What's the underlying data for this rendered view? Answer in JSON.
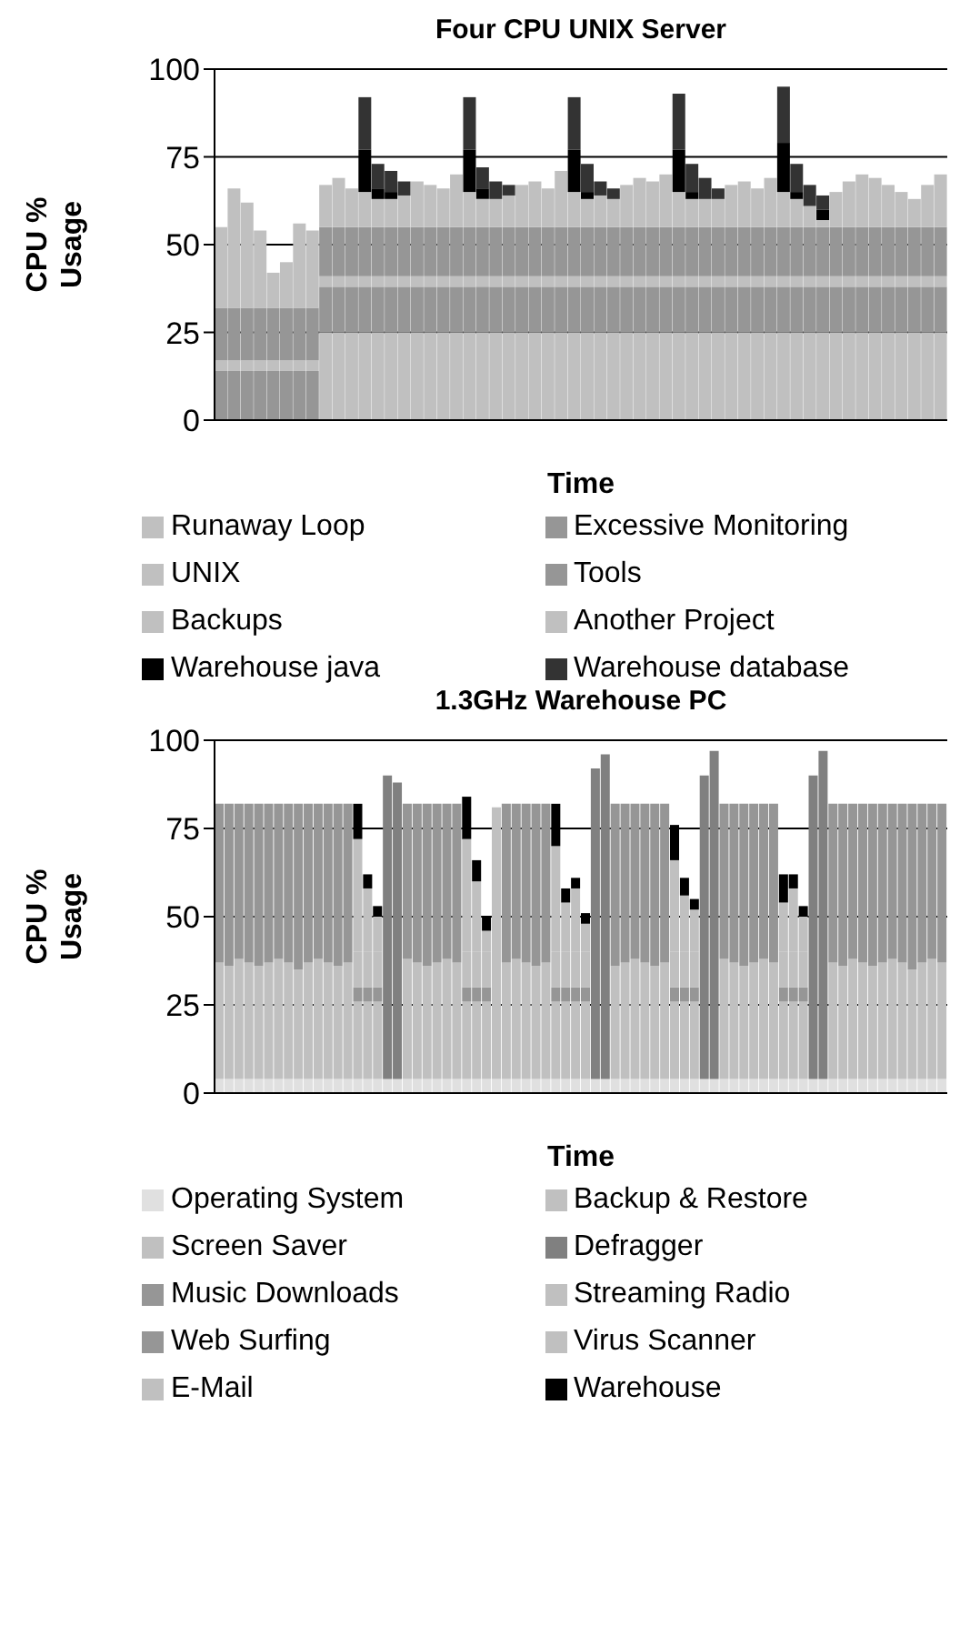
{
  "chart_data": [
    {
      "type": "bar",
      "stacked": true,
      "title": "Four CPU UNIX Server",
      "xlabel": "Time",
      "ylabel": "CPU % Usage",
      "ylim": [
        0,
        100
      ],
      "yticks": [
        0,
        25,
        50,
        75,
        100
      ],
      "grid": "y",
      "legend": "bottom",
      "tick_labels": "y",
      "categories": [
        null,
        null,
        null,
        null,
        null,
        null,
        null,
        null,
        null,
        null,
        null,
        null,
        null,
        null,
        null,
        null,
        null,
        null,
        null,
        null,
        null,
        null,
        null,
        null,
        null,
        null,
        null,
        null,
        null,
        null,
        null,
        null,
        null,
        null,
        null,
        null,
        null,
        null,
        null,
        null,
        null,
        null,
        null,
        null,
        null,
        null,
        null,
        null,
        null,
        null,
        null,
        null,
        null,
        null,
        null,
        null
      ],
      "series": [
        {
          "name": "Runaway Loop",
          "color": "#c0c0c0",
          "values": [
            0,
            0,
            0,
            0,
            0,
            0,
            0,
            0,
            25,
            25,
            25,
            25,
            25,
            25,
            25,
            25,
            25,
            25,
            25,
            25,
            25,
            25,
            25,
            25,
            25,
            25,
            25,
            25,
            25,
            25,
            25,
            25,
            25,
            25,
            25,
            25,
            25,
            25,
            25,
            25,
            25,
            25,
            25,
            25,
            25,
            25,
            25,
            25,
            25,
            25,
            25,
            25,
            25,
            25,
            25,
            25
          ]
        },
        {
          "name": "Excessive Monitoring",
          "color": "#969696",
          "values": [
            14,
            14,
            14,
            14,
            14,
            14,
            14,
            14,
            13,
            13,
            13,
            13,
            13,
            13,
            13,
            13,
            13,
            13,
            13,
            13,
            13,
            13,
            13,
            13,
            13,
            13,
            13,
            13,
            13,
            13,
            13,
            13,
            13,
            13,
            13,
            13,
            13,
            13,
            13,
            13,
            13,
            13,
            13,
            13,
            13,
            13,
            13,
            13,
            13,
            13,
            13,
            13,
            13,
            13,
            13,
            13
          ]
        },
        {
          "name": "UNIX",
          "color": "#c0c0c0",
          "values": [
            3,
            3,
            3,
            3,
            3,
            3,
            3,
            3,
            3,
            3,
            3,
            3,
            3,
            3,
            3,
            3,
            3,
            3,
            3,
            3,
            3,
            3,
            3,
            3,
            3,
            3,
            3,
            3,
            3,
            3,
            3,
            3,
            3,
            3,
            3,
            3,
            3,
            3,
            3,
            3,
            3,
            3,
            3,
            3,
            3,
            3,
            3,
            3,
            3,
            3,
            3,
            3,
            3,
            3,
            3,
            3
          ]
        },
        {
          "name": "Tools",
          "color": "#969696",
          "values": [
            15,
            15,
            15,
            15,
            15,
            15,
            15,
            15,
            14,
            14,
            14,
            14,
            14,
            14,
            14,
            14,
            14,
            14,
            14,
            14,
            14,
            14,
            14,
            14,
            14,
            14,
            14,
            14,
            14,
            14,
            14,
            14,
            14,
            14,
            14,
            14,
            14,
            14,
            14,
            14,
            14,
            14,
            14,
            14,
            14,
            14,
            14,
            14,
            14,
            14,
            14,
            14,
            14,
            14,
            14,
            14
          ]
        },
        {
          "name": "Backups",
          "color": "#c0c0c0",
          "values": [
            23,
            34,
            30,
            22,
            10,
            13,
            24,
            22,
            0,
            0,
            0,
            0,
            0,
            0,
            0,
            0,
            0,
            0,
            0,
            0,
            0,
            0,
            0,
            0,
            0,
            0,
            0,
            0,
            0,
            0,
            0,
            0,
            0,
            0,
            0,
            0,
            0,
            0,
            0,
            0,
            0,
            0,
            0,
            0,
            0,
            0,
            0,
            0,
            0,
            0,
            0,
            0,
            0,
            0,
            0,
            0
          ]
        },
        {
          "name": "Another Project",
          "color": "#c0c0c0",
          "values": [
            0,
            0,
            0,
            0,
            0,
            0,
            0,
            0,
            12,
            14,
            11,
            10,
            8,
            8,
            9,
            13,
            12,
            11,
            15,
            10,
            8,
            8,
            9,
            12,
            13,
            11,
            16,
            10,
            8,
            9,
            8,
            12,
            14,
            13,
            15,
            10,
            8,
            8,
            8,
            12,
            13,
            11,
            14,
            10,
            8,
            6,
            2,
            10,
            13,
            15,
            14,
            12,
            10,
            8,
            12,
            15
          ]
        },
        {
          "name": "Warehouse java",
          "color": "#000000",
          "values": [
            0,
            0,
            0,
            0,
            0,
            0,
            0,
            0,
            0,
            0,
            0,
            12,
            3,
            2,
            0,
            0,
            0,
            0,
            0,
            12,
            3,
            0,
            0,
            0,
            0,
            0,
            0,
            12,
            2,
            0,
            0,
            0,
            0,
            0,
            0,
            12,
            2,
            0,
            0,
            0,
            0,
            0,
            0,
            14,
            2,
            0,
            3,
            0,
            0,
            0,
            0,
            0,
            0,
            0,
            0,
            0
          ]
        },
        {
          "name": "Warehouse database",
          "color": "#333333",
          "values": [
            0,
            0,
            0,
            0,
            0,
            0,
            0,
            0,
            0,
            0,
            0,
            15,
            7,
            6,
            4,
            0,
            0,
            0,
            0,
            15,
            6,
            5,
            3,
            0,
            0,
            0,
            0,
            15,
            8,
            4,
            3,
            0,
            0,
            0,
            0,
            16,
            8,
            6,
            3,
            0,
            0,
            0,
            0,
            16,
            8,
            6,
            4,
            0,
            0,
            0,
            0,
            0,
            0,
            0,
            0,
            0
          ]
        }
      ]
    },
    {
      "type": "bar",
      "stacked": true,
      "title": "1.3GHz Warehouse PC",
      "xlabel": "Time",
      "ylabel": "CPU % Usage",
      "ylim": [
        0,
        100
      ],
      "yticks": [
        0,
        25,
        50,
        75,
        100
      ],
      "grid": "y",
      "legend": "bottom",
      "tick_labels": "y",
      "categories": [
        null,
        null,
        null,
        null,
        null,
        null,
        null,
        null,
        null,
        null,
        null,
        null,
        null,
        null,
        null,
        null,
        null,
        null,
        null,
        null,
        null,
        null,
        null,
        null,
        null,
        null,
        null,
        null,
        null,
        null,
        null,
        null,
        null,
        null,
        null,
        null,
        null,
        null,
        null,
        null,
        null,
        null,
        null,
        null,
        null,
        null,
        null,
        null,
        null,
        null,
        null,
        null,
        null,
        null,
        null,
        null,
        null,
        null,
        null,
        null,
        null,
        null,
        null,
        null,
        null,
        null,
        null,
        null,
        null,
        null,
        null,
        null,
        null,
        null
      ],
      "series": [
        {
          "name": "Operating System",
          "color": "#e0e0e0",
          "values": [
            4,
            4,
            4,
            4,
            4,
            4,
            4,
            4,
            4,
            4,
            4,
            4,
            4,
            4,
            4,
            4,
            4,
            4,
            4,
            4,
            4,
            4,
            4,
            4,
            4,
            4,
            4,
            4,
            4,
            4,
            4,
            4,
            4,
            4,
            4,
            4,
            4,
            4,
            4,
            4,
            4,
            4,
            4,
            4,
            4,
            4,
            4,
            4,
            4,
            4,
            4,
            4,
            4,
            4,
            4,
            4,
            4,
            4,
            4,
            4,
            4,
            4,
            4,
            4,
            4,
            4,
            4,
            4,
            4,
            4,
            4,
            4,
            4,
            4
          ]
        },
        {
          "name": "Backup & Restore",
          "color": "#c0c0c0",
          "values": [
            0,
            0,
            0,
            0,
            0,
            0,
            0,
            0,
            0,
            0,
            0,
            0,
            0,
            0,
            22,
            22,
            22,
            0,
            0,
            0,
            0,
            0,
            0,
            0,
            0,
            22,
            22,
            22,
            0,
            0,
            0,
            0,
            0,
            0,
            22,
            22,
            22,
            22,
            0,
            0,
            0,
            0,
            0,
            0,
            0,
            0,
            22,
            22,
            22,
            0,
            0,
            0,
            0,
            0,
            0,
            0,
            0,
            22,
            22,
            22,
            0,
            0,
            0,
            0,
            0,
            0,
            0,
            0,
            0,
            0,
            0,
            0,
            0,
            0
          ]
        },
        {
          "name": "Screen Saver",
          "color": "#c0c0c0",
          "values": [
            33,
            32,
            34,
            33,
            32,
            33,
            34,
            33,
            31,
            33,
            34,
            33,
            32,
            33,
            0,
            0,
            0,
            0,
            0,
            34,
            33,
            32,
            33,
            34,
            33,
            0,
            0,
            0,
            0,
            33,
            34,
            33,
            32,
            33,
            0,
            0,
            0,
            0,
            0,
            0,
            32,
            33,
            34,
            33,
            32,
            33,
            0,
            0,
            0,
            0,
            0,
            34,
            33,
            32,
            33,
            34,
            33,
            0,
            0,
            0,
            0,
            0,
            33,
            32,
            34,
            33,
            32,
            33,
            34,
            33,
            31,
            33,
            34,
            33
          ]
        },
        {
          "name": "Defragger",
          "color": "#808080",
          "values": [
            0,
            0,
            0,
            0,
            0,
            0,
            0,
            0,
            0,
            0,
            0,
            0,
            0,
            0,
            0,
            0,
            0,
            0,
            0,
            0,
            0,
            0,
            0,
            0,
            0,
            0,
            0,
            0,
            0,
            0,
            0,
            0,
            0,
            0,
            0,
            0,
            0,
            0,
            0,
            0,
            0,
            0,
            0,
            0,
            0,
            0,
            0,
            0,
            0,
            86,
            93,
            0,
            0,
            0,
            0,
            0,
            0,
            0,
            0,
            0,
            0,
            0,
            0,
            0,
            0,
            0,
            0,
            0,
            0,
            0,
            0,
            0,
            0,
            0
          ]
        },
        {
          "name": "Music Downloads",
          "color": "#969696",
          "values": [
            45,
            46,
            44,
            45,
            46,
            45,
            44,
            45,
            47,
            45,
            44,
            45,
            46,
            45,
            0,
            0,
            0,
            0,
            0,
            44,
            45,
            46,
            45,
            44,
            45,
            0,
            0,
            0,
            0,
            45,
            44,
            45,
            46,
            45,
            0,
            0,
            0,
            0,
            0,
            0,
            46,
            45,
            44,
            45,
            46,
            45,
            0,
            0,
            0,
            0,
            0,
            44,
            45,
            46,
            45,
            44,
            45,
            0,
            0,
            0,
            0,
            0,
            45,
            46,
            44,
            45,
            46,
            45,
            44,
            45,
            47,
            45,
            44,
            45
          ]
        },
        {
          "name": "Streaming Radio",
          "color": "#c0c0c0",
          "values": [
            0,
            0,
            0,
            0,
            0,
            0,
            0,
            0,
            0,
            0,
            0,
            0,
            0,
            0,
            0,
            0,
            0,
            0,
            0,
            0,
            0,
            0,
            0,
            0,
            0,
            0,
            0,
            0,
            77,
            0,
            0,
            0,
            0,
            0,
            0,
            0,
            0,
            0,
            0,
            0,
            0,
            0,
            0,
            0,
            0,
            0,
            0,
            0,
            0,
            0,
            0,
            0,
            0,
            0,
            0,
            0,
            0,
            0,
            0,
            0,
            0,
            0,
            0,
            0,
            0,
            0,
            0,
            0,
            0,
            0,
            0,
            0,
            0,
            0
          ]
        },
        {
          "color": "#808080",
          "values": [
            0,
            0,
            0,
            0,
            0,
            0,
            0,
            0,
            0,
            0,
            0,
            0,
            0,
            0,
            0,
            0,
            0,
            86,
            84,
            0,
            0,
            0,
            0,
            0,
            0,
            0,
            0,
            0,
            0,
            0,
            0,
            0,
            0,
            0,
            0,
            0,
            0,
            0,
            88,
            92,
            0,
            0,
            0,
            0,
            0,
            0,
            0,
            0,
            0,
            0,
            0,
            0,
            0,
            0,
            0,
            0,
            0,
            0,
            0,
            0,
            86,
            93,
            0,
            0,
            0,
            0,
            0,
            0,
            0,
            0,
            0,
            0,
            0,
            0
          ]
        },
        {
          "name": "Web Surfing",
          "color": "#969696",
          "values": [
            0,
            0,
            0,
            0,
            0,
            0,
            0,
            0,
            0,
            0,
            0,
            0,
            0,
            0,
            4,
            4,
            4,
            0,
            0,
            0,
            0,
            0,
            0,
            0,
            0,
            4,
            4,
            4,
            0,
            0,
            0,
            0,
            0,
            0,
            4,
            4,
            4,
            4,
            0,
            0,
            0,
            0,
            0,
            0,
            0,
            0,
            4,
            4,
            4,
            0,
            0,
            0,
            0,
            0,
            0,
            0,
            0,
            4,
            4,
            4,
            0,
            0,
            0,
            0,
            0,
            0,
            0,
            0,
            0,
            0,
            0,
            0,
            0,
            0
          ]
        },
        {
          "name": "Virus Scanner",
          "color": "#c0c0c0",
          "values": [
            0,
            0,
            0,
            0,
            0,
            0,
            0,
            0,
            0,
            0,
            0,
            0,
            0,
            0,
            10,
            10,
            10,
            0,
            0,
            0,
            0,
            0,
            0,
            0,
            0,
            10,
            10,
            10,
            0,
            0,
            0,
            0,
            0,
            0,
            10,
            10,
            10,
            10,
            0,
            0,
            0,
            0,
            0,
            0,
            0,
            0,
            10,
            10,
            10,
            0,
            0,
            0,
            0,
            0,
            0,
            0,
            0,
            10,
            10,
            10,
            0,
            0,
            0,
            0,
            0,
            0,
            0,
            0,
            0,
            0,
            0,
            0,
            0,
            0
          ]
        },
        {
          "name": "E-Mail",
          "color": "#c0c0c0",
          "values": [
            0,
            0,
            0,
            0,
            0,
            0,
            0,
            0,
            0,
            0,
            0,
            0,
            0,
            0,
            32,
            18,
            10,
            0,
            0,
            0,
            0,
            0,
            0,
            0,
            0,
            32,
            20,
            6,
            0,
            0,
            0,
            0,
            0,
            0,
            30,
            14,
            18,
            8,
            0,
            0,
            0,
            0,
            0,
            0,
            0,
            0,
            26,
            16,
            12,
            0,
            0,
            0,
            0,
            0,
            0,
            0,
            0,
            14,
            18,
            10,
            0,
            0,
            0,
            0,
            0,
            0,
            0,
            0,
            0,
            0,
            0,
            0,
            0,
            0
          ]
        },
        {
          "name": "Warehouse",
          "color": "#000000",
          "values": [
            0,
            0,
            0,
            0,
            0,
            0,
            0,
            0,
            0,
            0,
            0,
            0,
            0,
            0,
            10,
            4,
            3,
            0,
            0,
            0,
            0,
            0,
            0,
            0,
            0,
            12,
            6,
            4,
            0,
            0,
            0,
            0,
            0,
            0,
            12,
            4,
            3,
            3,
            0,
            0,
            0,
            0,
            0,
            0,
            0,
            0,
            10,
            5,
            3,
            0,
            0,
            0,
            0,
            0,
            0,
            0,
            0,
            8,
            4,
            3,
            0,
            0,
            0,
            0,
            0,
            0,
            0,
            0,
            0,
            0,
            0,
            0,
            0,
            0
          ]
        }
      ]
    }
  ]
}
